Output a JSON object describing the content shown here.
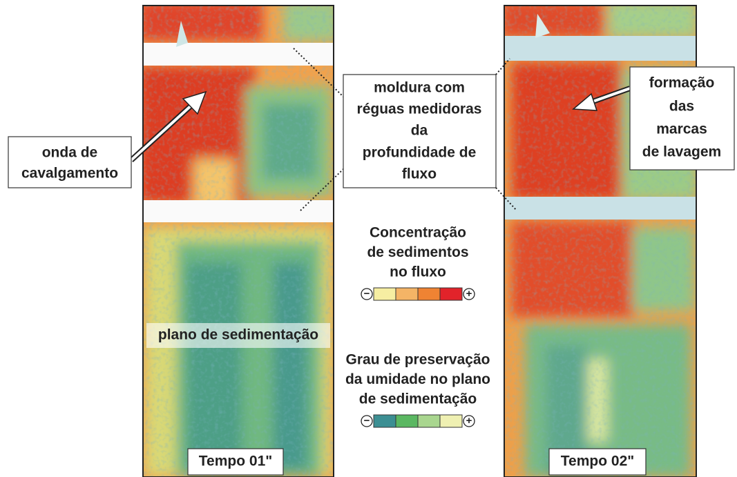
{
  "annotations": {
    "wave": {
      "lines": [
        "onda de",
        "cavalgamento"
      ]
    },
    "frame": {
      "lines": [
        "moldura com",
        "réguas medidoras",
        "da",
        "profundidade de",
        "fluxo"
      ]
    },
    "wash": {
      "lines": [
        "formação",
        "das",
        "marcas",
        "de lavagem"
      ]
    }
  },
  "panels": [
    {
      "label": "Tempo 01\"",
      "inner_label": "plano de sedimentação"
    },
    {
      "label": "Tempo 02\""
    }
  ],
  "legends": [
    {
      "title_lines": [
        "Concentração",
        "de sedimentos",
        "no fluxo"
      ],
      "min_symbol": "−",
      "max_symbol": "+",
      "colors": [
        "#f6eea2",
        "#f4b466",
        "#ef8333",
        "#e2232a"
      ]
    },
    {
      "title_lines": [
        "Grau de preservação",
        "da umidade no plano",
        "de sedimentação"
      ],
      "min_symbol": "−",
      "max_symbol": "+",
      "colors": [
        "#3c8f93",
        "#5bb862",
        "#a9d68f",
        "#eff0b2"
      ]
    }
  ]
}
